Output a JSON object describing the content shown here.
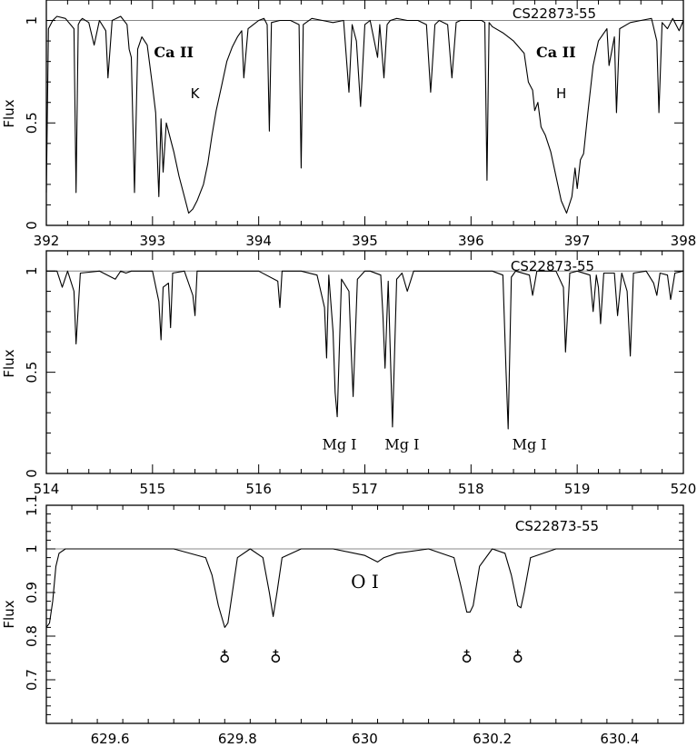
{
  "chart_data": [
    {
      "type": "line",
      "star": "CS22873-55",
      "ylabel": "Flux",
      "xlim": [
        392,
        398
      ],
      "ylim": [
        0,
        1.1
      ],
      "xticks": [
        "392",
        "393",
        "394",
        "395",
        "396",
        "397",
        "398"
      ],
      "yticks": [
        "0",
        "0.5",
        "1"
      ],
      "continuum": 1.0,
      "series": [
        {
          "x": [
            392.0,
            392.02,
            392.06,
            392.1,
            392.18,
            392.26,
            392.28,
            392.3,
            392.32,
            392.34,
            392.4,
            392.45,
            392.5,
            392.56,
            392.58,
            392.62,
            392.7,
            392.76,
            392.78,
            392.8,
            392.83,
            392.86,
            392.9,
            392.95,
            393.0,
            393.03,
            393.06,
            393.08,
            393.1,
            393.13,
            393.16,
            393.2,
            393.25,
            393.3,
            393.34,
            393.38,
            393.42,
            393.48,
            393.52,
            393.56,
            393.6,
            393.65,
            393.7,
            393.75,
            393.8,
            393.84,
            393.86,
            393.9,
            393.95,
            394.0,
            394.05,
            394.08,
            394.1,
            394.12,
            394.2,
            394.3,
            394.38,
            394.4,
            394.42,
            394.5,
            394.6,
            394.7,
            394.8,
            394.85,
            394.88,
            394.92,
            394.96,
            395.0,
            395.05,
            395.12,
            395.14,
            395.18,
            395.21,
            395.24,
            395.3,
            395.4,
            395.5,
            395.58,
            395.62,
            395.66,
            395.7,
            395.78,
            395.82,
            395.86,
            395.9,
            396.0,
            396.1,
            396.13,
            396.15,
            396.17,
            396.2,
            396.3,
            396.4,
            396.5,
            396.54,
            396.58,
            396.6,
            396.63,
            396.66,
            396.7,
            396.75,
            396.8,
            396.85,
            396.9,
            396.95,
            396.98,
            397.0,
            397.03,
            397.06,
            397.1,
            397.15,
            397.2,
            397.28,
            397.3,
            397.35,
            397.37,
            397.4,
            397.5,
            397.6,
            397.7,
            397.75,
            397.77,
            397.8,
            397.85,
            397.9,
            397.96,
            398.0
          ],
          "y": [
            0.16,
            0.96,
            1.0,
            1.02,
            1.01,
            0.96,
            0.16,
            0.98,
            1.0,
            1.01,
            0.99,
            0.88,
            1.0,
            0.95,
            0.72,
            1.0,
            1.02,
            0.98,
            0.86,
            0.82,
            0.16,
            0.86,
            0.92,
            0.88,
            0.68,
            0.55,
            0.14,
            0.52,
            0.26,
            0.5,
            0.44,
            0.36,
            0.24,
            0.14,
            0.06,
            0.08,
            0.12,
            0.2,
            0.3,
            0.44,
            0.56,
            0.68,
            0.8,
            0.87,
            0.92,
            0.95,
            0.72,
            0.96,
            0.98,
            1.0,
            1.01,
            0.98,
            0.46,
            0.99,
            1.0,
            1.0,
            0.98,
            0.28,
            0.98,
            1.01,
            1.0,
            0.99,
            1.0,
            0.65,
            0.98,
            0.9,
            0.58,
            0.98,
            1.0,
            0.82,
            0.98,
            0.72,
            0.98,
            1.0,
            1.01,
            1.0,
            1.0,
            0.98,
            0.65,
            0.98,
            1.0,
            0.98,
            0.72,
            0.99,
            1.0,
            1.0,
            1.0,
            0.99,
            0.22,
            0.99,
            0.97,
            0.94,
            0.9,
            0.84,
            0.7,
            0.66,
            0.56,
            0.6,
            0.48,
            0.44,
            0.36,
            0.24,
            0.12,
            0.06,
            0.14,
            0.28,
            0.18,
            0.32,
            0.35,
            0.55,
            0.78,
            0.9,
            0.96,
            0.78,
            0.92,
            0.55,
            0.96,
            0.99,
            1.0,
            1.01,
            0.9,
            0.55,
            0.99,
            0.96,
            1.01,
            0.95,
            1.0
          ]
        }
      ],
      "annotations": [
        {
          "text": "Ca II",
          "x": 393.2,
          "y": 0.82,
          "font": "serif-bold"
        },
        {
          "text": "K",
          "x": 393.4,
          "y": 0.62,
          "font": "sans"
        },
        {
          "text": "Ca II",
          "x": 396.8,
          "y": 0.82,
          "font": "serif-bold"
        },
        {
          "text": "H",
          "x": 396.85,
          "y": 0.62,
          "font": "sans"
        }
      ]
    },
    {
      "type": "line",
      "star": "CS22873-55",
      "ylabel": "Flux",
      "xlim": [
        514,
        520
      ],
      "ylim": [
        0,
        1.1
      ],
      "xticks": [
        "514",
        "515",
        "516",
        "517",
        "518",
        "519",
        "520"
      ],
      "yticks": [
        "0",
        "0.5",
        "1"
      ],
      "continuum": 1.0,
      "series": [
        {
          "x": [
            514.0,
            514.1,
            514.15,
            514.2,
            514.26,
            514.28,
            514.32,
            514.5,
            514.65,
            514.7,
            514.75,
            514.8,
            515.0,
            515.06,
            515.08,
            515.1,
            515.15,
            515.17,
            515.19,
            515.3,
            515.38,
            515.4,
            515.42,
            515.6,
            515.8,
            516.0,
            516.18,
            516.2,
            516.22,
            516.4,
            516.55,
            516.62,
            516.64,
            516.66,
            516.7,
            516.72,
            516.74,
            516.78,
            516.85,
            516.87,
            516.89,
            516.93,
            517.0,
            517.05,
            517.15,
            517.17,
            517.19,
            517.22,
            517.26,
            517.3,
            517.35,
            517.4,
            517.43,
            517.46,
            517.6,
            517.8,
            518.0,
            518.2,
            518.3,
            518.33,
            518.35,
            518.38,
            518.42,
            518.55,
            518.58,
            518.62,
            518.8,
            518.87,
            518.89,
            518.93,
            519.0,
            519.12,
            519.15,
            519.18,
            519.2,
            519.22,
            519.25,
            519.35,
            519.38,
            519.42,
            519.47,
            519.5,
            519.53,
            519.65,
            519.72,
            519.75,
            519.78,
            519.85,
            519.88,
            519.92,
            520.0
          ],
          "y": [
            1.0,
            1.0,
            0.92,
            1.0,
            0.9,
            0.64,
            0.99,
            1.0,
            0.96,
            1.0,
            0.99,
            1.0,
            1.0,
            0.85,
            0.66,
            0.92,
            0.94,
            0.72,
            0.99,
            1.0,
            0.88,
            0.78,
            1.0,
            1.0,
            1.0,
            1.0,
            0.95,
            0.82,
            1.0,
            1.0,
            0.98,
            0.82,
            0.57,
            0.98,
            0.7,
            0.4,
            0.28,
            0.96,
            0.9,
            0.62,
            0.38,
            0.96,
            1.0,
            1.0,
            0.98,
            0.78,
            0.52,
            0.95,
            0.23,
            0.96,
            0.99,
            0.9,
            0.95,
            1.0,
            1.0,
            1.0,
            1.0,
            1.0,
            0.98,
            0.5,
            0.22,
            0.97,
            1.0,
            0.98,
            0.88,
            1.0,
            1.0,
            0.92,
            0.6,
            0.99,
            1.0,
            0.98,
            0.8,
            0.98,
            0.92,
            0.74,
            0.99,
            0.99,
            0.78,
            0.99,
            0.9,
            0.58,
            0.99,
            1.0,
            0.94,
            0.88,
            0.99,
            0.98,
            0.86,
            0.99,
            1.0
          ]
        }
      ],
      "annotations": [
        {
          "text": "Mg I",
          "x": 516.76,
          "y": 0.12,
          "font": "serif"
        },
        {
          "text": "Mg I",
          "x": 517.35,
          "y": 0.12,
          "font": "serif"
        },
        {
          "text": "Mg I",
          "x": 518.55,
          "y": 0.12,
          "font": "serif"
        }
      ]
    },
    {
      "type": "line",
      "star": "CS22873-55",
      "ylabel": "Flux",
      "xlim": [
        629.5,
        630.5
      ],
      "ylim": [
        0.6,
        1.1
      ],
      "xticks": [
        "629.6",
        "629.8",
        "630",
        "630.2",
        "630.4"
      ],
      "yticks": [
        "0.7",
        "0.8",
        "0.9",
        "1",
        "1.1"
      ],
      "continuum": 1.0,
      "series": [
        {
          "x": [
            629.5,
            629.505,
            629.51,
            629.515,
            629.52,
            629.53,
            629.55,
            629.6,
            629.65,
            629.7,
            629.75,
            629.76,
            629.77,
            629.78,
            629.785,
            629.79,
            629.8,
            629.82,
            629.84,
            629.85,
            629.856,
            629.862,
            629.87,
            629.9,
            629.95,
            630.0,
            630.02,
            630.03,
            630.05,
            630.1,
            630.14,
            630.15,
            630.16,
            630.165,
            630.17,
            630.18,
            630.2,
            630.22,
            630.23,
            630.24,
            630.245,
            630.25,
            630.26,
            630.3,
            630.35,
            630.4,
            630.45,
            630.5
          ],
          "y": [
            0.82,
            0.83,
            0.88,
            0.96,
            0.99,
            1.0,
            1.0,
            1.0,
            1.0,
            1.0,
            0.98,
            0.94,
            0.87,
            0.82,
            0.83,
            0.88,
            0.98,
            1.0,
            0.98,
            0.9,
            0.845,
            0.9,
            0.98,
            1.0,
            1.0,
            0.985,
            0.97,
            0.98,
            0.99,
            1.0,
            0.98,
            0.92,
            0.855,
            0.855,
            0.87,
            0.96,
            1.0,
            0.99,
            0.94,
            0.87,
            0.865,
            0.9,
            0.98,
            1.0,
            1.0,
            1.0,
            1.0,
            1.0
          ]
        }
      ],
      "annotations": [
        {
          "text": "O I",
          "x": 630.0,
          "y": 0.91,
          "font": "serif-large"
        }
      ],
      "telluric_markers": [
        629.78,
        629.86,
        630.16,
        630.24
      ],
      "telluric_symbol": "♁"
    }
  ]
}
